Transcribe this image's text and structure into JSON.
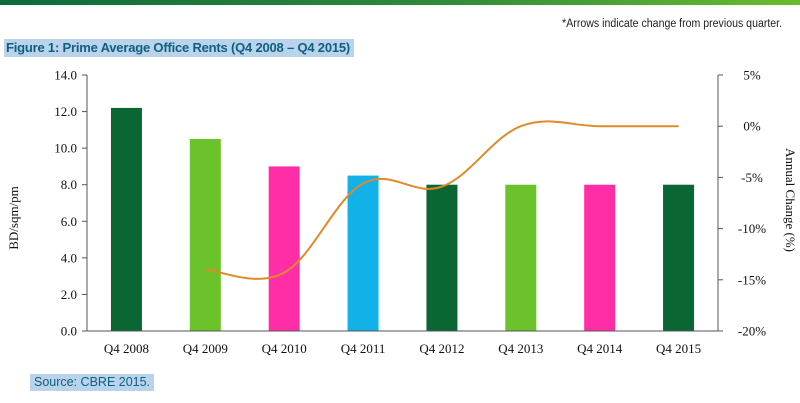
{
  "note": "*Arrows indicate change from previous quarter.",
  "figure_title": "Figure 1: Prime Average Office Rents (Q4 2008 – Q4 2015)",
  "source": "Source: CBRE 2015.",
  "chart_data": {
    "type": "bar",
    "title": "Prime Average Office Rents (Q4 2008 – Q4 2015)",
    "categories": [
      "Q4 2008",
      "Q4 2009",
      "Q4 2010",
      "Q4 2011",
      "Q4 2012",
      "Q4 2013",
      "Q4 2014",
      "Q4 2015"
    ],
    "series": [
      {
        "type": "bar",
        "axis": "left",
        "values": [
          12.2,
          10.5,
          9.0,
          8.5,
          8.0,
          8.0,
          8.0,
          8.0
        ],
        "colors": [
          "#0a6632",
          "#6cc22a",
          "#ff2ea6",
          "#12b2e8",
          "#0a6632",
          "#6cc22a",
          "#ff2ea6",
          "#0a6632"
        ]
      },
      {
        "type": "line",
        "axis": "right",
        "color": "#e08a2a",
        "values": [
          null,
          -14.0,
          -14.3,
          -5.6,
          -5.9,
          0.0,
          0.0,
          0.0
        ]
      }
    ],
    "ylabel": "BD/sqm/pm",
    "ylabel_right": "Annual Change (%)",
    "ylim": [
      0,
      14
    ],
    "ylim_right": [
      -20,
      5
    ],
    "yticks": [
      "0.0",
      "2.0",
      "4.0",
      "6.0",
      "8.0",
      "10.0",
      "12.0",
      "14.0"
    ],
    "yticks_right": [
      "-20%",
      "-15%",
      "-10%",
      "-5%",
      "0%",
      "5%"
    ],
    "grid": false
  }
}
